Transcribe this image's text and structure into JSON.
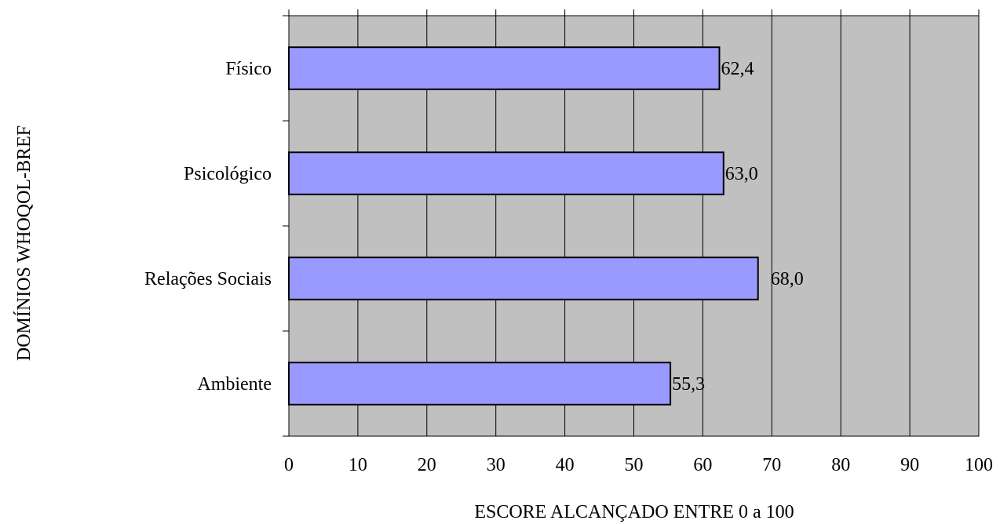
{
  "chart_data": {
    "type": "bar",
    "orientation": "horizontal",
    "title": "",
    "xlabel": "ESCORE ALCANÇADO ENTRE 0 a 100",
    "ylabel": "DOMÍNIOS WHOQOL-BREF",
    "categories": [
      "Físico",
      "Psicológico",
      "Relações Sociais",
      "Ambiente"
    ],
    "values": [
      62.4,
      63.0,
      68.0,
      55.3
    ],
    "value_labels": [
      "62,4",
      "63,0",
      "68,0",
      "55,3"
    ],
    "xlim": [
      0,
      100
    ],
    "xticks": [
      0,
      10,
      20,
      30,
      40,
      50,
      60,
      70,
      80,
      90,
      100
    ],
    "tick_labels": [
      "0",
      "10",
      "20",
      "30",
      "40",
      "50",
      "60",
      "70",
      "80",
      "90",
      "100"
    ],
    "grid": "vertical",
    "legend": "none",
    "colors": {
      "bar_fill": "#9999FF",
      "plot_background": "#C0C0C0",
      "gridline": "#000000"
    }
  }
}
